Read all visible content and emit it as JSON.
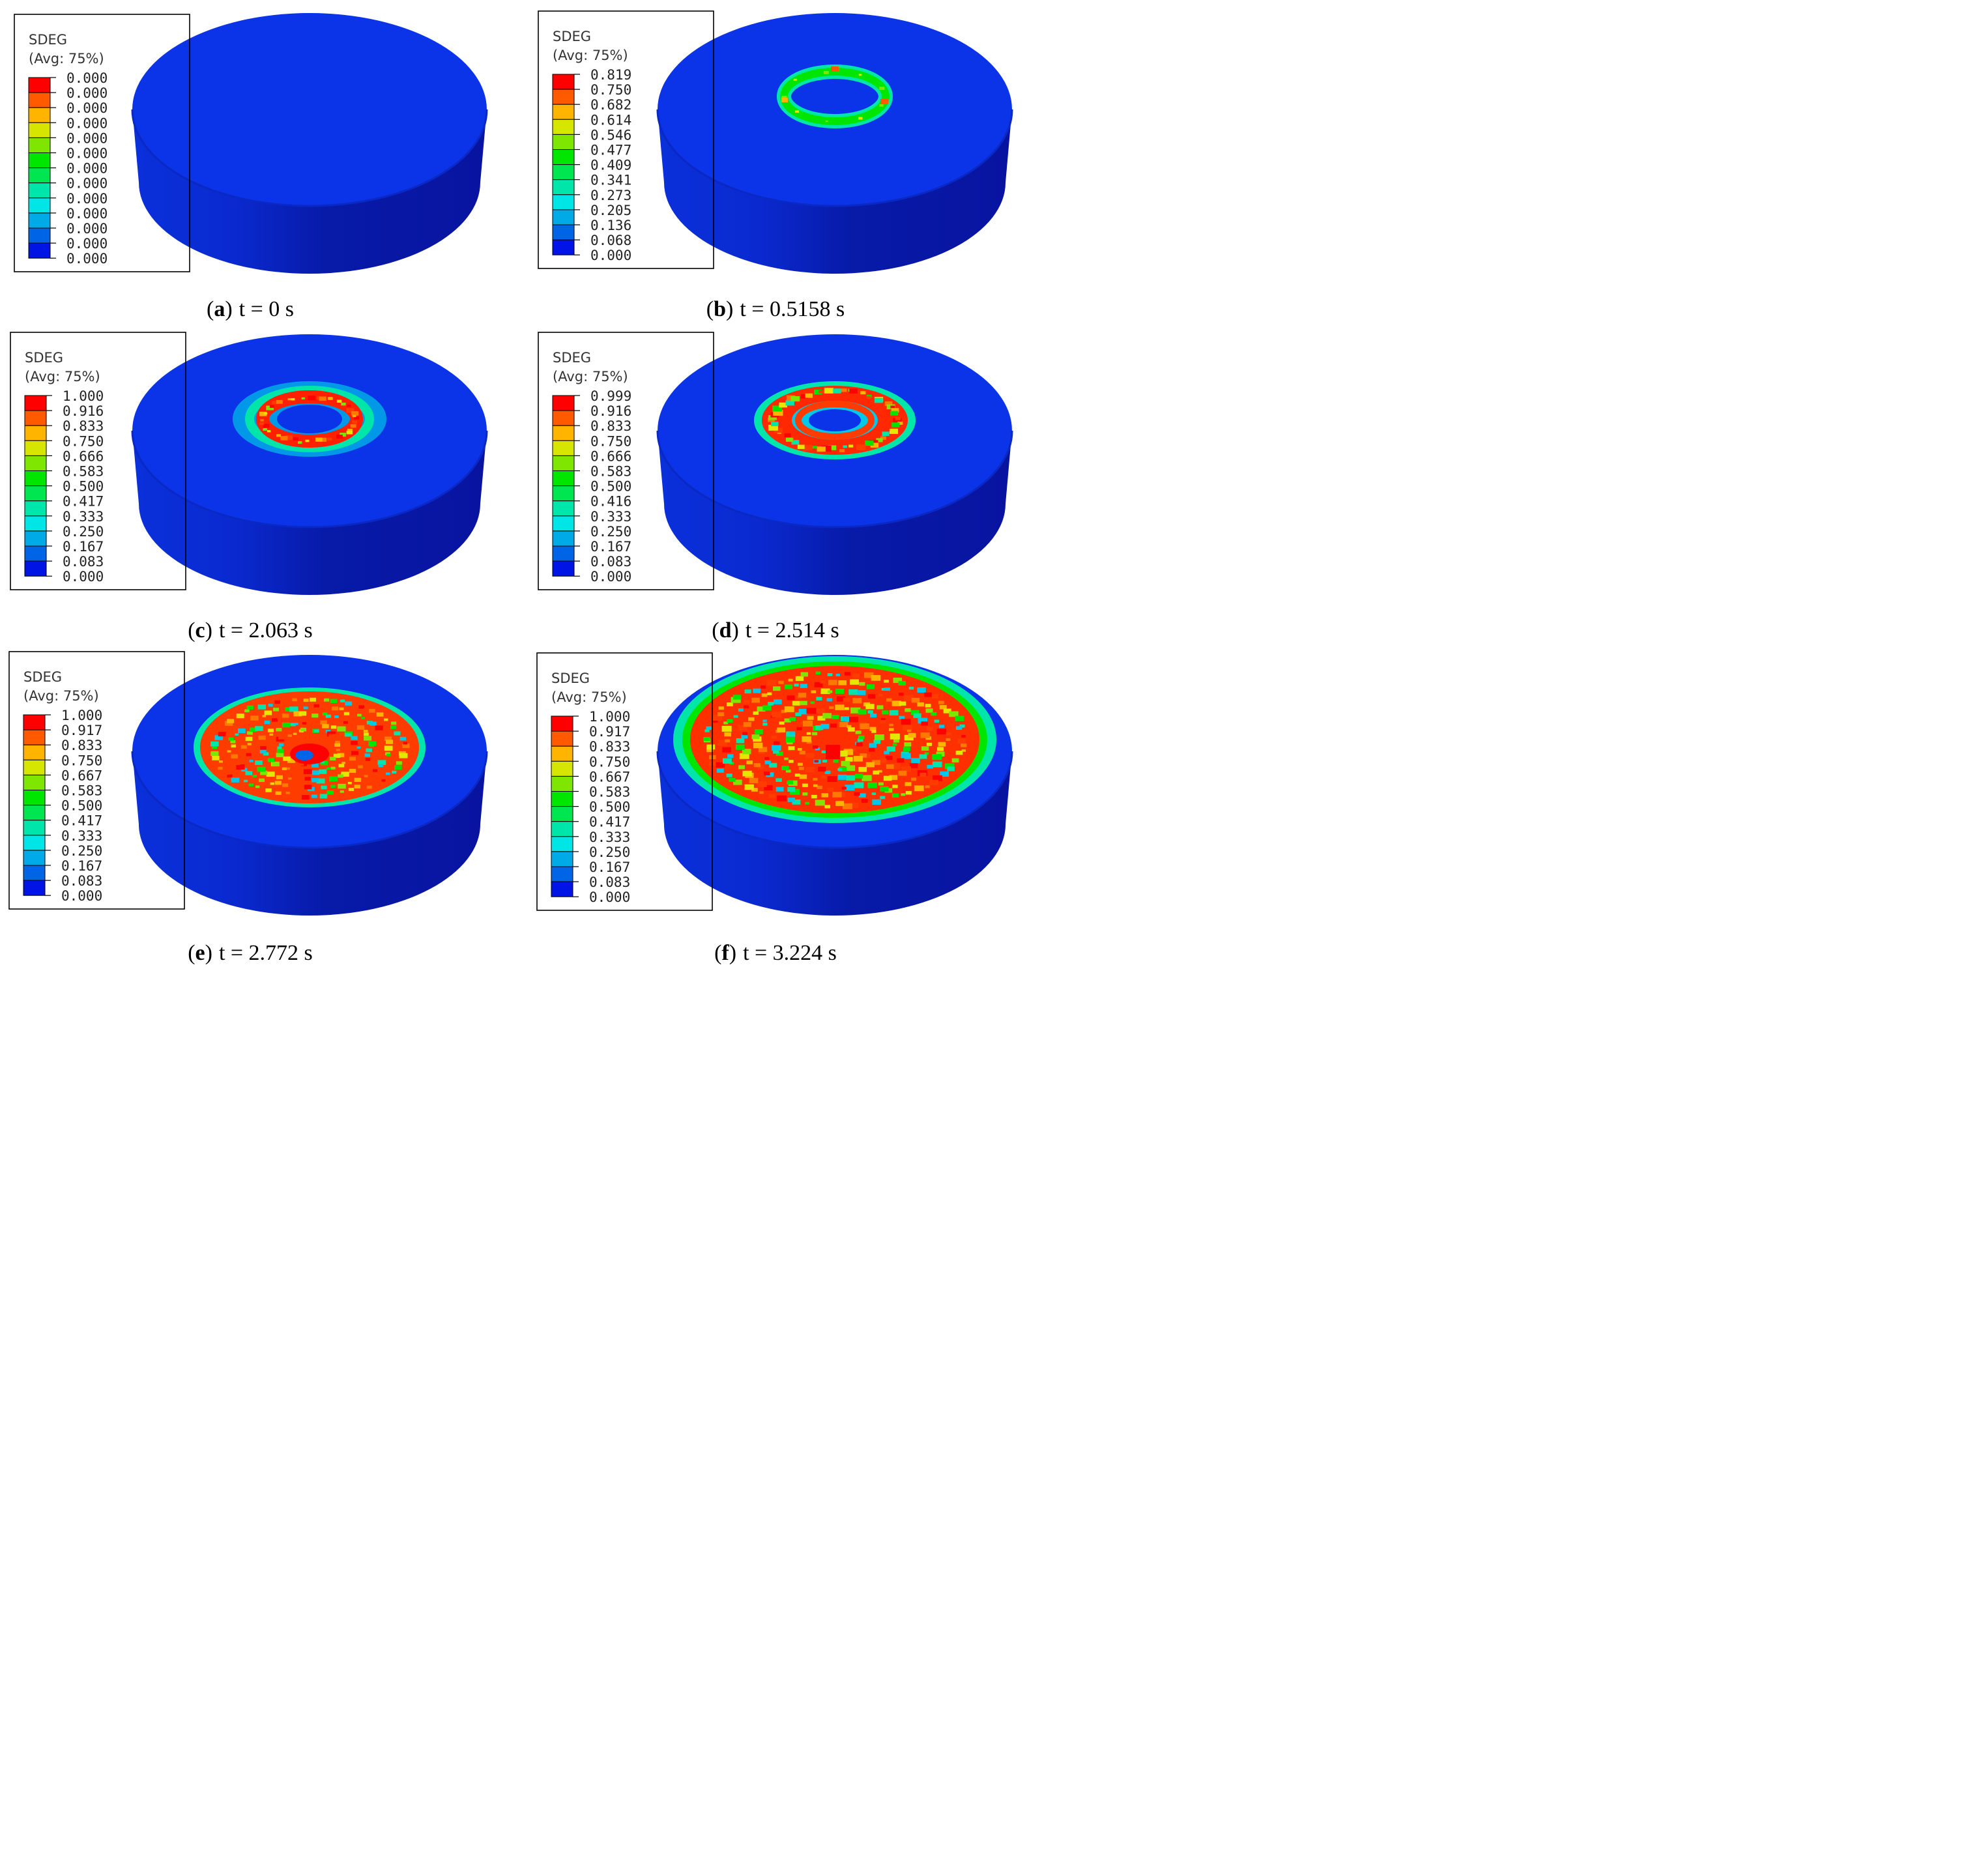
{
  "legend_colors": [
    "#ff0000",
    "#ff5a00",
    "#ffb400",
    "#d7e600",
    "#7ee600",
    "#00e600",
    "#00e650",
    "#00e6aa",
    "#00e6e6",
    "#00aae6",
    "#0064e6",
    "#0014e6"
  ],
  "body_colors": {
    "top": "#0b34e8",
    "side_dark": "#0712a6",
    "side_light": "#0a2fd8"
  },
  "panels": [
    {
      "legend_title": "SDEG",
      "legend_subtitle": "(Avg: 75%)",
      "ticks": [
        "0.000",
        "0.000",
        "0.000",
        "0.000",
        "0.000",
        "0.000",
        "0.000",
        "0.000",
        "0.000",
        "0.000",
        "0.000",
        "0.000",
        "0.000"
      ],
      "caption_letter": "a",
      "caption_open": "(",
      "caption_close": ")",
      "caption_text": "t = 0 s",
      "damage_stage": 0
    },
    {
      "legend_title": "SDEG",
      "legend_subtitle": "(Avg: 75%)",
      "ticks": [
        "0.819",
        "0.750",
        "0.682",
        "0.614",
        "0.546",
        "0.477",
        "0.409",
        "0.341",
        "0.273",
        "0.205",
        "0.136",
        "0.068",
        "0.000"
      ],
      "caption_letter": "b",
      "caption_open": "(",
      "caption_close": ")",
      "caption_text": "t = 0.5158 s",
      "damage_stage": 1
    },
    {
      "legend_title": "SDEG",
      "legend_subtitle": "(Avg: 75%)",
      "ticks": [
        "1.000",
        "0.916",
        "0.833",
        "0.750",
        "0.666",
        "0.583",
        "0.500",
        "0.417",
        "0.333",
        "0.250",
        "0.167",
        "0.083",
        "0.000"
      ],
      "caption_letter": "c",
      "caption_open": "(",
      "caption_close": ")",
      "caption_text": "t = 2.063 s",
      "damage_stage": 2
    },
    {
      "legend_title": "SDEG",
      "legend_subtitle": "(Avg: 75%)",
      "ticks": [
        "0.999",
        "0.916",
        "0.833",
        "0.750",
        "0.666",
        "0.583",
        "0.500",
        "0.416",
        "0.333",
        "0.250",
        "0.167",
        "0.083",
        "0.000"
      ],
      "caption_letter": "d",
      "caption_open": "(",
      "caption_close": ")",
      "caption_text": "t = 2.514 s",
      "damage_stage": 3
    },
    {
      "legend_title": "SDEG",
      "legend_subtitle": "(Avg: 75%)",
      "ticks": [
        "1.000",
        "0.917",
        "0.833",
        "0.750",
        "0.667",
        "0.583",
        "0.500",
        "0.417",
        "0.333",
        "0.250",
        "0.167",
        "0.083",
        "0.000"
      ],
      "caption_letter": "e",
      "caption_open": "(",
      "caption_close": ")",
      "caption_text": "t = 2.772 s",
      "damage_stage": 4
    },
    {
      "legend_title": "SDEG",
      "legend_subtitle": "(Avg: 75%)",
      "ticks": [
        "1.000",
        "0.917",
        "0.833",
        "0.750",
        "0.667",
        "0.583",
        "0.500",
        "0.417",
        "0.333",
        "0.250",
        "0.167",
        "0.083",
        "0.000"
      ],
      "caption_letter": "f",
      "caption_open": "(",
      "caption_close": ")",
      "caption_text": "t = 3.224 s",
      "damage_stage": 5
    }
  ]
}
